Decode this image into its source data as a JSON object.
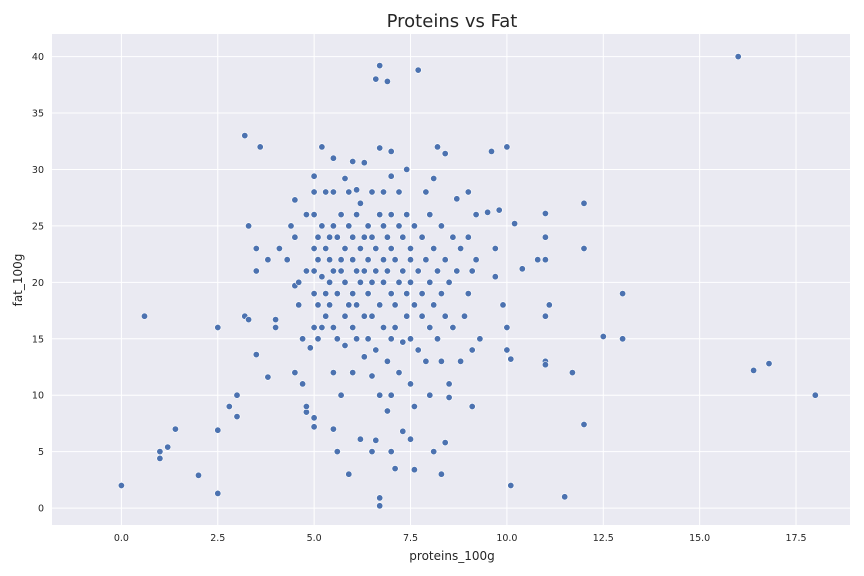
{
  "chart_data": {
    "type": "scatter",
    "title": "Proteins vs Fat",
    "xlabel": "proteins_100g",
    "ylabel": "fat_100g",
    "xlim": [
      -1.8,
      18.9
    ],
    "ylim": [
      -1.5,
      42
    ],
    "xticks": [
      "0.0",
      "2.5",
      "5.0",
      "7.5",
      "10.0",
      "12.5",
      "15.0",
      "17.5"
    ],
    "xtick_values": [
      0,
      2.5,
      5,
      7.5,
      10,
      12.5,
      15,
      17.5
    ],
    "yticks": [
      "0",
      "5",
      "10",
      "15",
      "20",
      "25",
      "30",
      "35",
      "40"
    ],
    "ytick_values": [
      0,
      5,
      10,
      15,
      20,
      25,
      30,
      35,
      40
    ],
    "grid": true,
    "colors": {
      "background": "#EAEAF2",
      "grid": "#FFFFFF",
      "marker": "#4C72B0",
      "marker_edge": "#FFFFFF"
    },
    "points": [
      [
        0.0,
        2.0
      ],
      [
        0.6,
        17.0
      ],
      [
        1.0,
        5.0
      ],
      [
        1.0,
        4.4
      ],
      [
        1.2,
        5.4
      ],
      [
        1.4,
        7.0
      ],
      [
        2.0,
        2.9
      ],
      [
        2.5,
        1.3
      ],
      [
        2.5,
        6.9
      ],
      [
        2.5,
        16.0
      ],
      [
        2.8,
        9.0
      ],
      [
        3.0,
        8.1
      ],
      [
        3.0,
        10.0
      ],
      [
        3.2,
        33.0
      ],
      [
        3.2,
        17.0
      ],
      [
        3.3,
        16.7
      ],
      [
        3.3,
        25.0
      ],
      [
        3.5,
        21.0
      ],
      [
        3.5,
        23.0
      ],
      [
        3.5,
        13.6
      ],
      [
        3.6,
        32.0
      ],
      [
        3.8,
        11.6
      ],
      [
        3.8,
        22.0
      ],
      [
        4.0,
        16.0
      ],
      [
        4.0,
        16.7
      ],
      [
        4.1,
        23.0
      ],
      [
        4.3,
        22.0
      ],
      [
        4.4,
        25.0
      ],
      [
        4.5,
        24.0
      ],
      [
        4.5,
        27.3
      ],
      [
        4.5,
        12.0
      ],
      [
        4.5,
        19.7
      ],
      [
        4.6,
        18.0
      ],
      [
        4.6,
        20.0
      ],
      [
        4.7,
        11.0
      ],
      [
        4.7,
        15.0
      ],
      [
        4.8,
        21.0
      ],
      [
        4.8,
        26.0
      ],
      [
        4.8,
        8.5
      ],
      [
        4.8,
        9.0
      ],
      [
        4.9,
        14.2
      ],
      [
        5.0,
        21.0
      ],
      [
        5.0,
        23.0
      ],
      [
        5.0,
        26.0
      ],
      [
        5.0,
        28.0
      ],
      [
        5.0,
        29.4
      ],
      [
        5.0,
        16.0
      ],
      [
        5.0,
        8.0
      ],
      [
        5.0,
        7.2
      ],
      [
        5.0,
        19.0
      ],
      [
        5.1,
        22.0
      ],
      [
        5.1,
        24.0
      ],
      [
        5.1,
        18.0
      ],
      [
        5.1,
        15.0
      ],
      [
        5.2,
        20.5
      ],
      [
        5.2,
        25.0
      ],
      [
        5.2,
        32.0
      ],
      [
        5.2,
        16.0
      ],
      [
        5.3,
        17.0
      ],
      [
        5.3,
        19.0
      ],
      [
        5.3,
        23.0
      ],
      [
        5.3,
        28.0
      ],
      [
        5.4,
        20.0
      ],
      [
        5.4,
        22.0
      ],
      [
        5.4,
        24.0
      ],
      [
        5.4,
        18.0
      ],
      [
        5.5,
        21.0
      ],
      [
        5.5,
        25.0
      ],
      [
        5.5,
        28.0
      ],
      [
        5.5,
        31.0
      ],
      [
        5.5,
        16.0
      ],
      [
        5.5,
        12.0
      ],
      [
        5.5,
        7.0
      ],
      [
        5.6,
        19.0
      ],
      [
        5.6,
        15.0
      ],
      [
        5.6,
        24.0
      ],
      [
        5.6,
        5.0
      ],
      [
        5.7,
        22.0
      ],
      [
        5.7,
        26.0
      ],
      [
        5.7,
        10.0
      ],
      [
        5.7,
        21.0
      ],
      [
        5.8,
        29.2
      ],
      [
        5.8,
        17.0
      ],
      [
        5.8,
        14.4
      ],
      [
        5.8,
        23.0
      ],
      [
        5.8,
        20.0
      ],
      [
        5.9,
        18.0
      ],
      [
        5.9,
        25.0
      ],
      [
        5.9,
        28.0
      ],
      [
        5.9,
        3.0
      ],
      [
        6.0,
        22.0
      ],
      [
        6.0,
        24.0
      ],
      [
        6.0,
        16.0
      ],
      [
        6.0,
        30.7
      ],
      [
        6.0,
        12.0
      ],
      [
        6.0,
        19.0
      ],
      [
        6.1,
        21.0
      ],
      [
        6.1,
        26.0
      ],
      [
        6.1,
        28.2
      ],
      [
        6.1,
        15.0
      ],
      [
        6.1,
        18.0
      ],
      [
        6.2,
        20.0
      ],
      [
        6.2,
        23.0
      ],
      [
        6.2,
        6.1
      ],
      [
        6.2,
        27.0
      ],
      [
        6.3,
        24.0
      ],
      [
        6.3,
        17.0
      ],
      [
        6.3,
        13.4
      ],
      [
        6.3,
        30.6
      ],
      [
        6.3,
        21.0
      ],
      [
        6.4,
        19.0
      ],
      [
        6.4,
        22.0
      ],
      [
        6.4,
        25.0
      ],
      [
        6.4,
        15.0
      ],
      [
        6.5,
        17.0
      ],
      [
        6.5,
        20.0
      ],
      [
        6.5,
        28.0
      ],
      [
        6.5,
        11.7
      ],
      [
        6.5,
        5.0
      ],
      [
        6.5,
        24.0
      ],
      [
        6.6,
        21.0
      ],
      [
        6.6,
        38.0
      ],
      [
        6.6,
        14.0
      ],
      [
        6.6,
        6.0
      ],
      [
        6.6,
        23.0
      ],
      [
        6.7,
        39.2
      ],
      [
        6.7,
        0.9
      ],
      [
        6.7,
        0.2
      ],
      [
        6.7,
        18.0
      ],
      [
        6.7,
        26.0
      ],
      [
        6.7,
        10.0
      ],
      [
        6.7,
        31.9
      ],
      [
        6.8,
        22.0
      ],
      [
        6.8,
        16.0
      ],
      [
        6.8,
        25.0
      ],
      [
        6.8,
        20.0
      ],
      [
        6.8,
        28.0
      ],
      [
        6.9,
        37.8
      ],
      [
        6.9,
        21.0
      ],
      [
        6.9,
        13.0
      ],
      [
        6.9,
        8.6
      ],
      [
        6.9,
        24.0
      ],
      [
        7.0,
        19.0
      ],
      [
        7.0,
        23.0
      ],
      [
        7.0,
        29.4
      ],
      [
        7.0,
        15.0
      ],
      [
        7.0,
        5.0
      ],
      [
        7.0,
        10.0
      ],
      [
        7.0,
        31.6
      ],
      [
        7.0,
        26.0
      ],
      [
        7.1,
        3.5
      ],
      [
        7.1,
        18.0
      ],
      [
        7.1,
        22.0
      ],
      [
        7.1,
        16.0
      ],
      [
        7.2,
        28.0
      ],
      [
        7.2,
        20.0
      ],
      [
        7.2,
        25.0
      ],
      [
        7.2,
        12.0
      ],
      [
        7.3,
        21.0
      ],
      [
        7.3,
        24.0
      ],
      [
        7.3,
        14.7
      ],
      [
        7.3,
        6.8
      ],
      [
        7.4,
        17.0
      ],
      [
        7.4,
        19.0
      ],
      [
        7.4,
        26.0
      ],
      [
        7.4,
        30.0
      ],
      [
        7.5,
        23.0
      ],
      [
        7.5,
        11.0
      ],
      [
        7.5,
        15.0
      ],
      [
        7.5,
        20.0
      ],
      [
        7.5,
        22.0
      ],
      [
        7.5,
        6.1
      ],
      [
        7.6,
        25.0
      ],
      [
        7.6,
        3.4
      ],
      [
        7.6,
        18.0
      ],
      [
        7.6,
        9.0
      ],
      [
        7.7,
        21.0
      ],
      [
        7.7,
        14.0
      ],
      [
        7.7,
        38.8
      ],
      [
        7.8,
        17.0
      ],
      [
        7.8,
        24.0
      ],
      [
        7.8,
        19.0
      ],
      [
        7.9,
        22.0
      ],
      [
        7.9,
        13.0
      ],
      [
        7.9,
        28.0
      ],
      [
        8.0,
        20.0
      ],
      [
        8.0,
        26.0
      ],
      [
        8.0,
        16.0
      ],
      [
        8.0,
        10.0
      ],
      [
        8.1,
        18.0
      ],
      [
        8.1,
        23.0
      ],
      [
        8.1,
        29.2
      ],
      [
        8.1,
        5.0
      ],
      [
        8.2,
        21.0
      ],
      [
        8.2,
        32.0
      ],
      [
        8.2,
        15.0
      ],
      [
        8.3,
        25.0
      ],
      [
        8.3,
        19.0
      ],
      [
        8.3,
        13.0
      ],
      [
        8.3,
        3.0
      ],
      [
        8.4,
        22.0
      ],
      [
        8.4,
        31.4
      ],
      [
        8.4,
        17.0
      ],
      [
        8.4,
        5.8
      ],
      [
        8.5,
        20.0
      ],
      [
        8.5,
        11.0
      ],
      [
        8.5,
        9.8
      ],
      [
        8.6,
        24.0
      ],
      [
        8.6,
        16.0
      ],
      [
        8.7,
        27.4
      ],
      [
        8.7,
        21.0
      ],
      [
        8.8,
        23.0
      ],
      [
        8.8,
        13.0
      ],
      [
        8.9,
        17.0
      ],
      [
        9.0,
        24.0
      ],
      [
        9.0,
        19.0
      ],
      [
        9.0,
        28.0
      ],
      [
        9.1,
        21.0
      ],
      [
        9.1,
        14.0
      ],
      [
        9.1,
        9.0
      ],
      [
        9.2,
        26.0
      ],
      [
        9.2,
        22.0
      ],
      [
        9.3,
        15.0
      ],
      [
        9.5,
        26.2
      ],
      [
        9.6,
        31.6
      ],
      [
        9.7,
        23.0
      ],
      [
        9.7,
        20.5
      ],
      [
        9.8,
        26.4
      ],
      [
        9.9,
        18.0
      ],
      [
        10.0,
        32.0
      ],
      [
        10.0,
        16.0
      ],
      [
        10.0,
        14.0
      ],
      [
        10.1,
        13.2
      ],
      [
        10.1,
        2.0
      ],
      [
        10.2,
        25.2
      ],
      [
        10.4,
        21.2
      ],
      [
        10.8,
        22.0
      ],
      [
        11.0,
        26.1
      ],
      [
        11.0,
        24.0
      ],
      [
        11.0,
        22.0
      ],
      [
        11.0,
        17.0
      ],
      [
        11.0,
        13.0
      ],
      [
        11.0,
        12.7
      ],
      [
        11.1,
        18.0
      ],
      [
        11.5,
        1.0
      ],
      [
        11.7,
        12.0
      ],
      [
        12.0,
        27.0
      ],
      [
        12.0,
        23.0
      ],
      [
        12.0,
        7.4
      ],
      [
        12.5,
        15.2
      ],
      [
        13.0,
        19.0
      ],
      [
        13.0,
        15.0
      ],
      [
        16.0,
        40.0
      ],
      [
        16.4,
        12.2
      ],
      [
        16.8,
        12.8
      ],
      [
        18.0,
        10.0
      ]
    ]
  }
}
